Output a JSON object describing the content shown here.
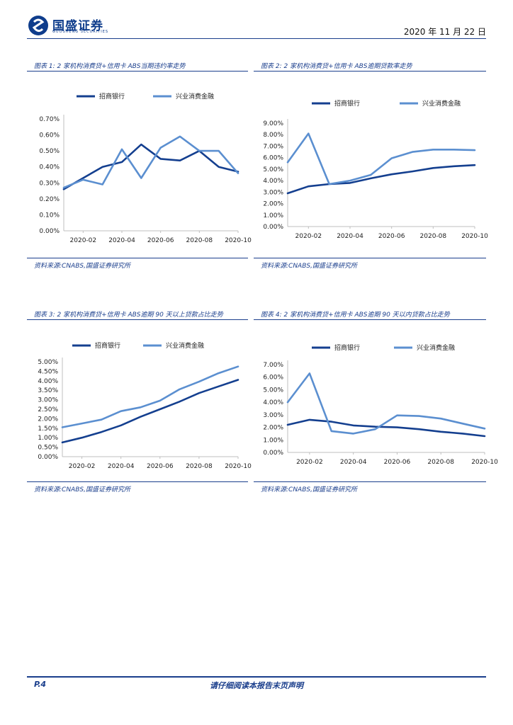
{
  "header": {
    "company": "国盛证券",
    "company_en": "GUOSHENG SECURITIES",
    "date": "2020 年 11 月 22 日"
  },
  "charts": [
    {
      "title": "图表 1:  2 家机构消费贷+信用卡 ABS当期违约率走势",
      "source": "资料来源:CNABS,国盛证券研究所"
    },
    {
      "title": "图表 2:  2 家机构消费贷+信用卡 ABS逾期贷款率走势",
      "source": "资料来源:CNABS,国盛证券研究所"
    },
    {
      "title": "图表 3:  2 家机构消费贷+信用卡 ABS逾期 90 天以上贷款占比走势",
      "source": "资料来源:CNABS,国盛证券研究所"
    },
    {
      "title": "图表 4:  2 家机构消费贷+信用卡 ABS逾期 90 天以内贷款占比走势",
      "source": "资料来源:CNABS,国盛证券研究所"
    }
  ],
  "footer": {
    "page": "P.4",
    "disclaimer": "请仔细阅读本报告末页声明"
  },
  "colors": {
    "series1": "#143f8f",
    "series2": "#5b8fd0",
    "brand": "#1a3e8c"
  },
  "chart_data": [
    {
      "type": "line",
      "x": [
        "2020-01",
        "2020-02",
        "2020-03",
        "2020-04",
        "2020-05",
        "2020-06",
        "2020-07",
        "2020-08",
        "2020-09",
        "2020-10"
      ],
      "xticks": [
        "2020-02",
        "2020-04",
        "2020-06",
        "2020-08",
        "2020-10"
      ],
      "yticks": [
        "0.00%",
        "0.10%",
        "0.20%",
        "0.30%",
        "0.40%",
        "0.50%",
        "0.60%",
        "0.70%"
      ],
      "ylim": [
        0,
        0.7
      ],
      "series": [
        {
          "name": "招商银行",
          "values": [
            0.26,
            0.33,
            0.4,
            0.43,
            0.54,
            0.45,
            0.44,
            0.5,
            0.4,
            0.37
          ]
        },
        {
          "name": "兴业消费金融",
          "values": [
            0.27,
            0.32,
            0.29,
            0.51,
            0.33,
            0.52,
            0.59,
            0.5,
            0.5,
            0.36
          ]
        }
      ]
    },
    {
      "type": "line",
      "x": [
        "2020-01",
        "2020-02",
        "2020-03",
        "2020-04",
        "2020-05",
        "2020-06",
        "2020-07",
        "2020-08",
        "2020-09",
        "2020-10"
      ],
      "xticks": [
        "2020-02",
        "2020-04",
        "2020-06",
        "2020-08",
        "2020-10"
      ],
      "yticks": [
        "0.00%",
        "1.00%",
        "2.00%",
        "3.00%",
        "4.00%",
        "5.00%",
        "6.00%",
        "7.00%",
        "8.00%",
        "9.00%"
      ],
      "ylim": [
        0,
        9.0
      ],
      "series": [
        {
          "name": "招商银行",
          "values": [
            2.9,
            3.5,
            3.7,
            3.8,
            4.2,
            4.55,
            4.8,
            5.1,
            5.25,
            5.35
          ]
        },
        {
          "name": "兴业消费金融",
          "values": [
            5.6,
            8.1,
            3.7,
            4.0,
            4.5,
            5.95,
            6.5,
            6.7,
            6.7,
            6.65
          ]
        }
      ]
    },
    {
      "type": "line",
      "x": [
        "2020-01",
        "2020-02",
        "2020-03",
        "2020-04",
        "2020-05",
        "2020-06",
        "2020-07",
        "2020-08",
        "2020-09",
        "2020-10"
      ],
      "xticks": [
        "2020-02",
        "2020-04",
        "2020-06",
        "2020-08",
        "2020-10"
      ],
      "yticks": [
        "0.00%",
        "0.50%",
        "1.00%",
        "1.50%",
        "2.00%",
        "2.50%",
        "3.00%",
        "3.50%",
        "4.00%",
        "4.50%",
        "5.00%"
      ],
      "ylim": [
        0,
        5.0
      ],
      "series": [
        {
          "name": "招商银行",
          "values": [
            0.75,
            1.0,
            1.3,
            1.65,
            2.1,
            2.5,
            2.9,
            3.35,
            3.7,
            4.05
          ]
        },
        {
          "name": "兴业消费金融",
          "values": [
            1.55,
            1.75,
            1.95,
            2.4,
            2.6,
            2.95,
            3.55,
            3.95,
            4.4,
            4.75
          ]
        }
      ]
    },
    {
      "type": "line",
      "x": [
        "2020-01",
        "2020-02",
        "2020-03",
        "2020-04",
        "2020-05",
        "2020-06",
        "2020-07",
        "2020-08",
        "2020-09",
        "2020-10"
      ],
      "xticks": [
        "2020-02",
        "2020-04",
        "2020-06",
        "2020-08",
        "2020-10"
      ],
      "yticks": [
        "0.00%",
        "1.00%",
        "2.00%",
        "3.00%",
        "4.00%",
        "5.00%",
        "6.00%",
        "7.00%"
      ],
      "ylim": [
        0,
        7.0
      ],
      "series": [
        {
          "name": "招商银行",
          "values": [
            2.2,
            2.6,
            2.45,
            2.15,
            2.05,
            2.0,
            1.85,
            1.65,
            1.5,
            1.3
          ]
        },
        {
          "name": "兴业消费金融",
          "values": [
            4.0,
            6.3,
            1.7,
            1.5,
            1.85,
            2.95,
            2.9,
            2.7,
            2.3,
            1.9
          ]
        }
      ]
    }
  ]
}
